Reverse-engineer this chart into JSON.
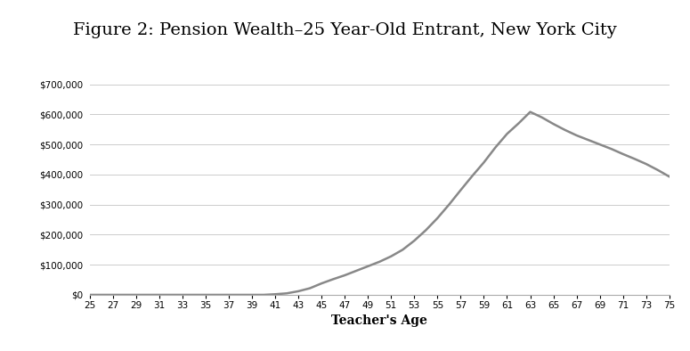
{
  "title": "Figure 2: Pension Wealth–25 Year-Old Entrant, New York City",
  "xlabel": "Teacher's Age",
  "title_fontsize": 14,
  "xlabel_fontsize": 10,
  "figure_bg_color": "#ffffff",
  "title_bg_color": "#d3d3d3",
  "plot_bg_color": "#ffffff",
  "line_color": "#888888",
  "line_width": 1.8,
  "ages": [
    25,
    26,
    27,
    28,
    29,
    30,
    31,
    32,
    33,
    34,
    35,
    36,
    37,
    38,
    39,
    40,
    41,
    42,
    43,
    44,
    45,
    46,
    47,
    48,
    49,
    50,
    51,
    52,
    53,
    54,
    55,
    56,
    57,
    58,
    59,
    60,
    61,
    62,
    63,
    64,
    65,
    66,
    67,
    68,
    69,
    70,
    71,
    72,
    73,
    74,
    75
  ],
  "values": [
    0,
    0,
    0,
    0,
    0,
    0,
    0,
    0,
    0,
    0,
    0,
    0,
    0,
    0,
    0,
    0,
    2000,
    5000,
    12000,
    22000,
    38000,
    52000,
    65000,
    80000,
    95000,
    110000,
    128000,
    150000,
    180000,
    215000,
    255000,
    300000,
    348000,
    395000,
    440000,
    490000,
    535000,
    570000,
    608000,
    590000,
    568000,
    548000,
    530000,
    515000,
    500000,
    485000,
    468000,
    452000,
    435000,
    415000,
    393000
  ],
  "ylim": [
    0,
    700000
  ],
  "yticks": [
    0,
    100000,
    200000,
    300000,
    400000,
    500000,
    600000,
    700000
  ],
  "xticks": [
    25,
    27,
    29,
    31,
    33,
    35,
    37,
    39,
    41,
    43,
    45,
    47,
    49,
    51,
    53,
    55,
    57,
    59,
    61,
    63,
    65,
    67,
    69,
    71,
    73,
    75
  ],
  "grid_color": "#cccccc",
  "border_color": "#aaaaaa",
  "tick_label_fontsize": 7.5
}
